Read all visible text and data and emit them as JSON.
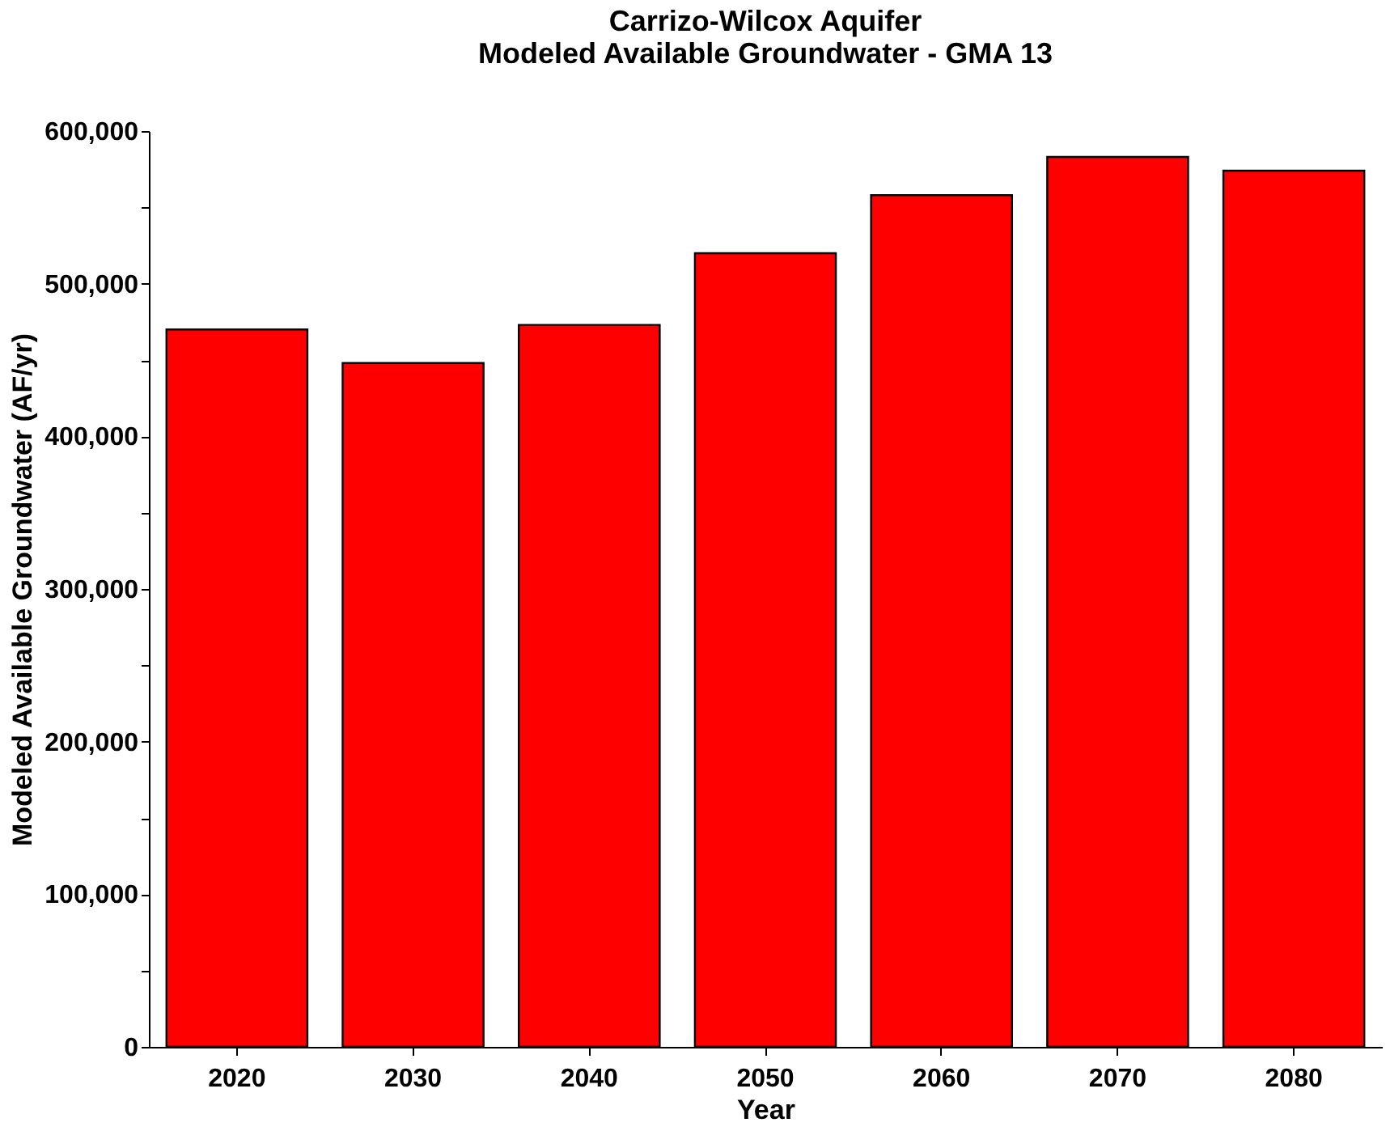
{
  "chart_data": {
    "type": "bar",
    "title": "Carrizo-Wilcox Aquifer\nModeled Available Groundwater - GMA 13",
    "xlabel": "Year",
    "ylabel": "Modeled Available Groundwater (AF/yr)",
    "categories": [
      "2020",
      "2030",
      "2040",
      "2050",
      "2060",
      "2070",
      "2080"
    ],
    "values": [
      470000,
      448000,
      473000,
      520000,
      558000,
      583000,
      574000
    ],
    "color": "#ff0000",
    "ylim": [
      0,
      600000
    ],
    "yticks": [
      0,
      {
        "value": 50000,
        "label": null
      },
      {
        "value": 100000,
        "label": "100,000"
      },
      {
        "value": 150000,
        "label": null
      },
      {
        "value": 200000,
        "label": "200,000"
      },
      {
        "value": 250000,
        "label": null
      },
      {
        "value": 300000,
        "label": "300,000"
      },
      {
        "value": 350000,
        "label": null
      },
      {
        "value": 400000,
        "label": "400,000"
      },
      {
        "value": 450000,
        "label": null
      },
      {
        "value": 500000,
        "label": "500,000"
      },
      {
        "value": 550000,
        "label": null
      },
      {
        "value": 600000,
        "label": "600,000"
      }
    ],
    "grid": false
  }
}
